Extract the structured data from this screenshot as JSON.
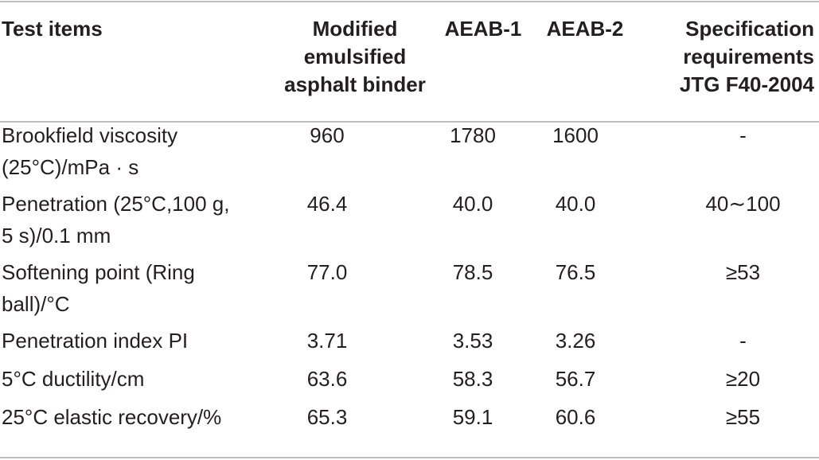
{
  "table": {
    "headers": [
      [
        "Test items"
      ],
      [
        "Modified",
        "emulsified",
        "asphalt binder"
      ],
      [
        "AEAB-1"
      ],
      [
        "AEAB-2"
      ],
      [
        "Specification",
        "requirements",
        "JTG F40-2004"
      ]
    ],
    "rows": [
      {
        "item": [
          "Brookfield viscosity",
          "(25°C)/mPa · s"
        ],
        "modified": "960",
        "aeab1": "1780",
        "aeab2": "1600",
        "spec": "-"
      },
      {
        "item": [
          "Penetration (25°C,100 g,",
          "5 s)/0.1 mm"
        ],
        "modified": "46.4",
        "aeab1": "40.0",
        "aeab2": "40.0",
        "spec": "40∼100"
      },
      {
        "item": [
          "Softening point (Ring",
          "ball)/°C"
        ],
        "modified": "77.0",
        "aeab1": "78.5",
        "aeab2": "76.5",
        "spec": "≥53"
      },
      {
        "item": [
          "Penetration index PI"
        ],
        "modified": "3.71",
        "aeab1": "3.53",
        "aeab2": "3.26",
        "spec": "-"
      },
      {
        "item": [
          "5°C ductility/cm"
        ],
        "modified": "63.6",
        "aeab1": "58.3",
        "aeab2": "56.7",
        "spec": "≥20"
      },
      {
        "item": [
          "25°C elastic recovery/%"
        ],
        "modified": "65.3",
        "aeab1": "59.1",
        "aeab2": "60.6",
        "spec": "≥55"
      }
    ]
  }
}
